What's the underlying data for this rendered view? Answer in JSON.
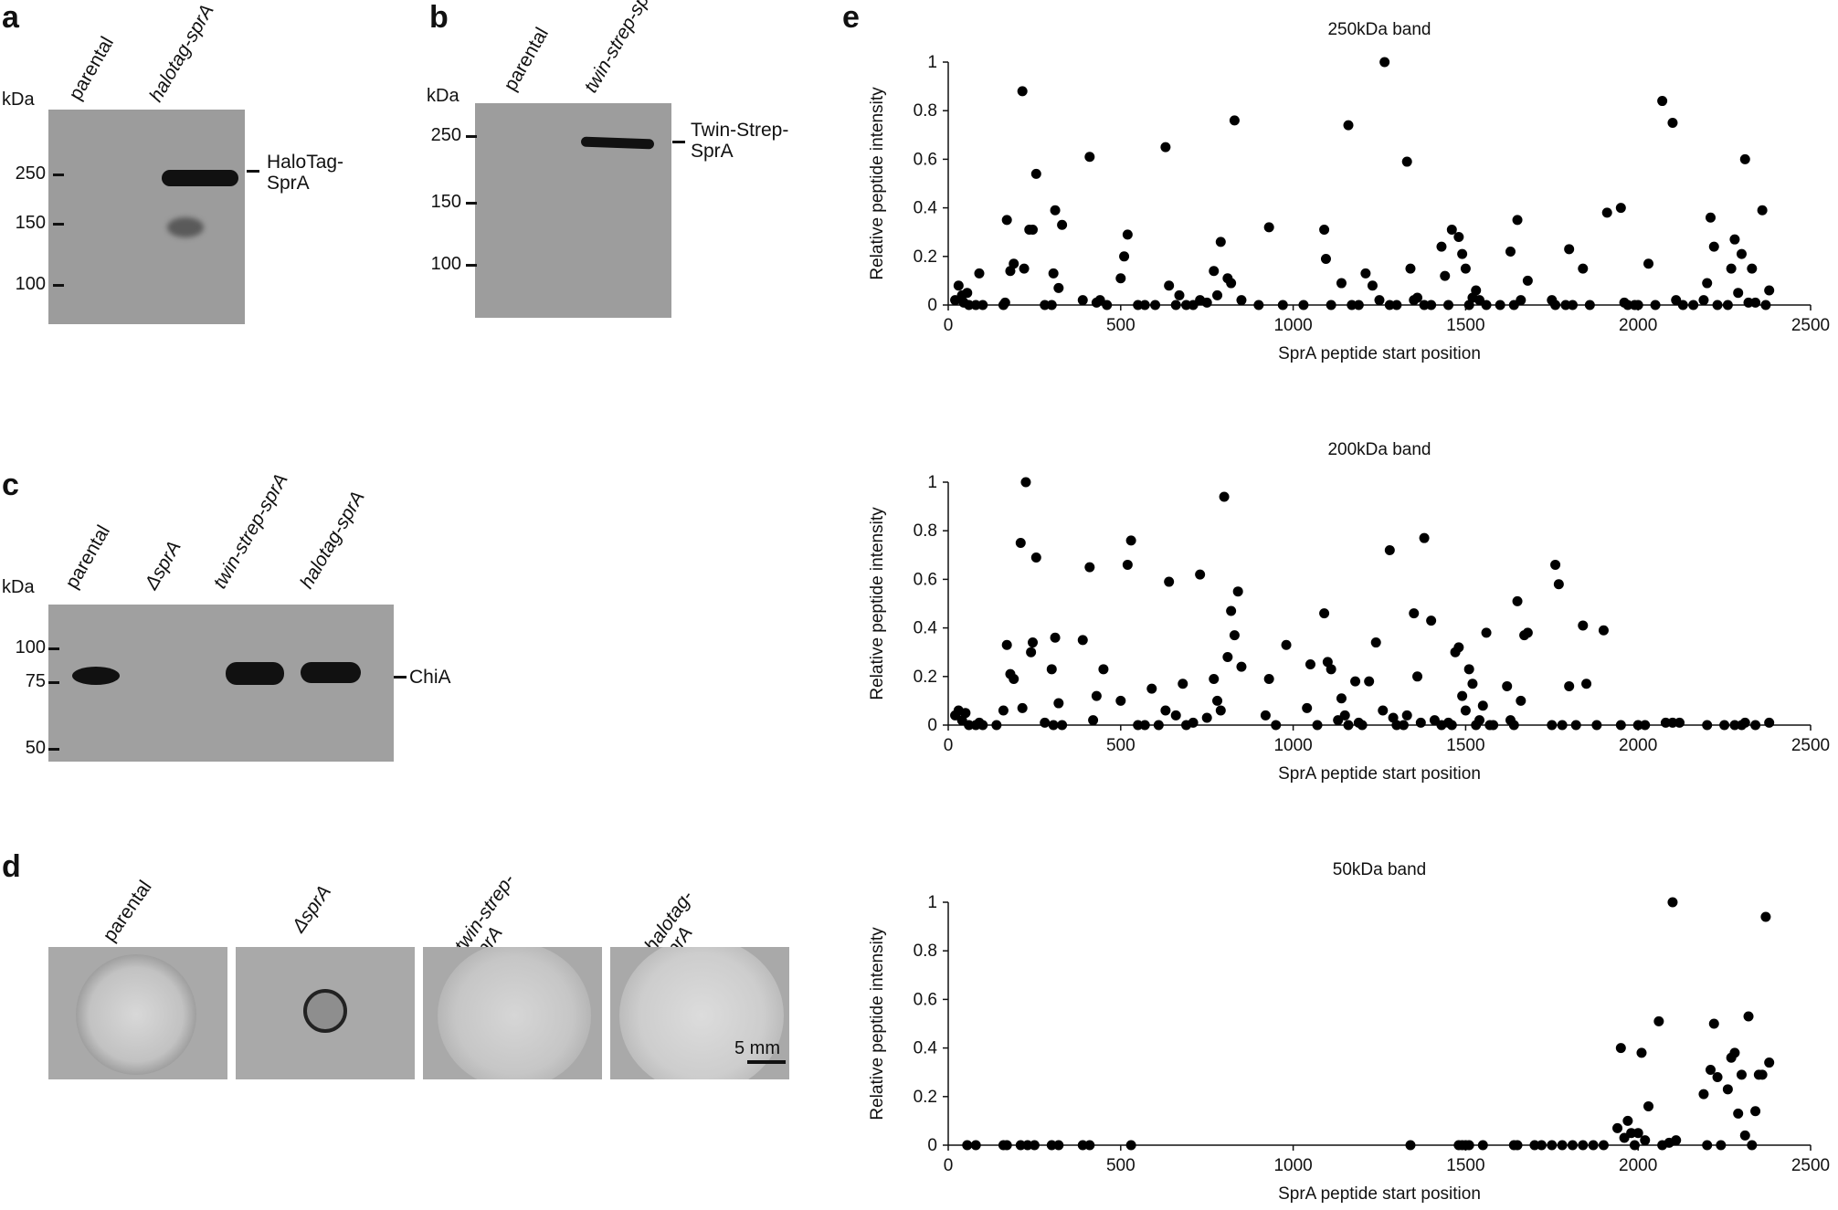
{
  "panels": {
    "a": {
      "letter": "a",
      "kda": "kDa",
      "lanes": [
        "parental",
        "halotag-sprA"
      ],
      "markers": [
        "250",
        "150",
        "100"
      ],
      "band_label": "HaloTag-\nSprA"
    },
    "b": {
      "letter": "b",
      "kda": "kDa",
      "lanes": [
        "parental",
        "twin-strep-sprA"
      ],
      "markers": [
        "250",
        "150",
        "100"
      ],
      "band_label": "Twin-Strep-\nSprA"
    },
    "c": {
      "letter": "c",
      "kda": "kDa",
      "lanes": [
        "parental",
        "ΔsprA",
        "twin-strep-sprA",
        "halotag-sprA"
      ],
      "markers": [
        "100",
        "75",
        "50"
      ],
      "band_label": "ChiA"
    },
    "d": {
      "letter": "d",
      "plates": [
        "parental",
        "ΔsprA",
        "twin-strep-\nsprA",
        "halotag-\nsprA"
      ],
      "scale_label": "5 mm"
    },
    "e": {
      "letter": "e"
    }
  },
  "chart_data": [
    {
      "type": "scatter",
      "title": "250kDa band",
      "xlabel": "SprA peptide start position",
      "ylabel": "Relative peptide intensity",
      "xlim": [
        0,
        2500
      ],
      "ylim": [
        0,
        1
      ],
      "xticks": [
        "0",
        "500",
        "1000",
        "1500",
        "2000",
        "2500"
      ],
      "yticks": [
        "0",
        "0.2",
        "0.4",
        "0.6",
        "0.8",
        "1"
      ],
      "points": [
        [
          20,
          0.02
        ],
        [
          30,
          0.08
        ],
        [
          40,
          0.04
        ],
        [
          45,
          0.01
        ],
        [
          55,
          0.05
        ],
        [
          60,
          0.0
        ],
        [
          80,
          0.0
        ],
        [
          90,
          0.13
        ],
        [
          100,
          0.0
        ],
        [
          160,
          0.0
        ],
        [
          165,
          0.01
        ],
        [
          170,
          0.35
        ],
        [
          180,
          0.14
        ],
        [
          190,
          0.17
        ],
        [
          215,
          0.88
        ],
        [
          220,
          0.15
        ],
        [
          235,
          0.31
        ],
        [
          245,
          0.31
        ],
        [
          255,
          0.54
        ],
        [
          280,
          0.0
        ],
        [
          300,
          0.0
        ],
        [
          305,
          0.13
        ],
        [
          310,
          0.39
        ],
        [
          320,
          0.07
        ],
        [
          330,
          0.33
        ],
        [
          390,
          0.02
        ],
        [
          410,
          0.61
        ],
        [
          430,
          0.01
        ],
        [
          440,
          0.02
        ],
        [
          460,
          0.0
        ],
        [
          500,
          0.11
        ],
        [
          510,
          0.2
        ],
        [
          520,
          0.29
        ],
        [
          550,
          0.0
        ],
        [
          570,
          0.0
        ],
        [
          600,
          0.0
        ],
        [
          630,
          0.65
        ],
        [
          640,
          0.08
        ],
        [
          660,
          0.0
        ],
        [
          670,
          0.04
        ],
        [
          690,
          0.0
        ],
        [
          710,
          0.0
        ],
        [
          730,
          0.02
        ],
        [
          750,
          0.01
        ],
        [
          770,
          0.14
        ],
        [
          780,
          0.04
        ],
        [
          790,
          0.26
        ],
        [
          810,
          0.11
        ],
        [
          820,
          0.09
        ],
        [
          830,
          0.76
        ],
        [
          850,
          0.02
        ],
        [
          900,
          0.0
        ],
        [
          930,
          0.32
        ],
        [
          970,
          0.0
        ],
        [
          1030,
          0.0
        ],
        [
          1090,
          0.31
        ],
        [
          1095,
          0.19
        ],
        [
          1110,
          0.0
        ],
        [
          1140,
          0.09
        ],
        [
          1160,
          0.74
        ],
        [
          1170,
          0.0
        ],
        [
          1190,
          0.0
        ],
        [
          1210,
          0.13
        ],
        [
          1230,
          0.08
        ],
        [
          1250,
          0.02
        ],
        [
          1265,
          1.0
        ],
        [
          1280,
          0.0
        ],
        [
          1300,
          0.0
        ],
        [
          1330,
          0.59
        ],
        [
          1340,
          0.15
        ],
        [
          1350,
          0.02
        ],
        [
          1360,
          0.03
        ],
        [
          1380,
          0.0
        ],
        [
          1400,
          0.0
        ],
        [
          1430,
          0.24
        ],
        [
          1440,
          0.12
        ],
        [
          1450,
          0.0
        ],
        [
          1460,
          0.31
        ],
        [
          1480,
          0.28
        ],
        [
          1490,
          0.21
        ],
        [
          1500,
          0.15
        ],
        [
          1510,
          0.0
        ],
        [
          1520,
          0.03
        ],
        [
          1530,
          0.06
        ],
        [
          1540,
          0.02
        ],
        [
          1560,
          0.0
        ],
        [
          1600,
          0.0
        ],
        [
          1630,
          0.22
        ],
        [
          1640,
          0.0
        ],
        [
          1650,
          0.35
        ],
        [
          1660,
          0.02
        ],
        [
          1680,
          0.1
        ],
        [
          1750,
          0.02
        ],
        [
          1760,
          0.0
        ],
        [
          1790,
          0.0
        ],
        [
          1800,
          0.23
        ],
        [
          1810,
          0.0
        ],
        [
          1840,
          0.15
        ],
        [
          1860,
          0.0
        ],
        [
          1910,
          0.38
        ],
        [
          1950,
          0.4
        ],
        [
          1960,
          0.01
        ],
        [
          1970,
          0.0
        ],
        [
          1990,
          0.0
        ],
        [
          2000,
          0.0
        ],
        [
          2030,
          0.17
        ],
        [
          2050,
          0.0
        ],
        [
          2070,
          0.84
        ],
        [
          2100,
          0.75
        ],
        [
          2110,
          0.02
        ],
        [
          2130,
          0.0
        ],
        [
          2160,
          0.0
        ],
        [
          2190,
          0.02
        ],
        [
          2200,
          0.09
        ],
        [
          2210,
          0.36
        ],
        [
          2220,
          0.24
        ],
        [
          2230,
          0.0
        ],
        [
          2260,
          0.0
        ],
        [
          2270,
          0.15
        ],
        [
          2280,
          0.27
        ],
        [
          2290,
          0.05
        ],
        [
          2300,
          0.21
        ],
        [
          2310,
          0.6
        ],
        [
          2320,
          0.01
        ],
        [
          2330,
          0.15
        ],
        [
          2340,
          0.01
        ],
        [
          2360,
          0.39
        ],
        [
          2370,
          0.0
        ],
        [
          2380,
          0.06
        ]
      ]
    },
    {
      "type": "scatter",
      "title": "200kDa band",
      "xlabel": "SprA peptide start position",
      "ylabel": "Relative peptide intensity",
      "xlim": [
        0,
        2500
      ],
      "ylim": [
        0,
        1
      ],
      "xticks": [
        "0",
        "500",
        "1000",
        "1500",
        "2000",
        "2500"
      ],
      "yticks": [
        "0",
        "0.2",
        "0.4",
        "0.6",
        "0.8",
        "1"
      ],
      "points": [
        [
          20,
          0.04
        ],
        [
          30,
          0.06
        ],
        [
          40,
          0.02
        ],
        [
          50,
          0.05
        ],
        [
          60,
          0.0
        ],
        [
          80,
          0.0
        ],
        [
          90,
          0.01
        ],
        [
          100,
          0.0
        ],
        [
          140,
          0.0
        ],
        [
          160,
          0.06
        ],
        [
          170,
          0.33
        ],
        [
          180,
          0.21
        ],
        [
          190,
          0.19
        ],
        [
          210,
          0.75
        ],
        [
          215,
          0.07
        ],
        [
          225,
          1.0
        ],
        [
          240,
          0.3
        ],
        [
          245,
          0.34
        ],
        [
          255,
          0.69
        ],
        [
          280,
          0.01
        ],
        [
          300,
          0.23
        ],
        [
          305,
          0.0
        ],
        [
          310,
          0.36
        ],
        [
          320,
          0.09
        ],
        [
          330,
          0.0
        ],
        [
          390,
          0.35
        ],
        [
          410,
          0.65
        ],
        [
          420,
          0.02
        ],
        [
          430,
          0.12
        ],
        [
          450,
          0.23
        ],
        [
          500,
          0.1
        ],
        [
          520,
          0.66
        ],
        [
          530,
          0.76
        ],
        [
          550,
          0.0
        ],
        [
          570,
          0.0
        ],
        [
          590,
          0.15
        ],
        [
          610,
          0.0
        ],
        [
          630,
          0.06
        ],
        [
          640,
          0.59
        ],
        [
          660,
          0.04
        ],
        [
          680,
          0.17
        ],
        [
          690,
          0.0
        ],
        [
          710,
          0.01
        ],
        [
          730,
          0.62
        ],
        [
          750,
          0.03
        ],
        [
          770,
          0.19
        ],
        [
          780,
          0.1
        ],
        [
          790,
          0.06
        ],
        [
          800,
          0.94
        ],
        [
          810,
          0.28
        ],
        [
          820,
          0.47
        ],
        [
          830,
          0.37
        ],
        [
          840,
          0.55
        ],
        [
          850,
          0.24
        ],
        [
          920,
          0.04
        ],
        [
          930,
          0.19
        ],
        [
          950,
          0.0
        ],
        [
          980,
          0.33
        ],
        [
          1040,
          0.07
        ],
        [
          1050,
          0.25
        ],
        [
          1070,
          0.0
        ],
        [
          1090,
          0.46
        ],
        [
          1100,
          0.26
        ],
        [
          1110,
          0.23
        ],
        [
          1130,
          0.02
        ],
        [
          1140,
          0.11
        ],
        [
          1150,
          0.04
        ],
        [
          1160,
          0.0
        ],
        [
          1180,
          0.18
        ],
        [
          1190,
          0.01
        ],
        [
          1200,
          0.0
        ],
        [
          1220,
          0.18
        ],
        [
          1240,
          0.34
        ],
        [
          1260,
          0.06
        ],
        [
          1280,
          0.72
        ],
        [
          1290,
          0.03
        ],
        [
          1300,
          0.0
        ],
        [
          1320,
          0.0
        ],
        [
          1330,
          0.04
        ],
        [
          1350,
          0.46
        ],
        [
          1360,
          0.2
        ],
        [
          1370,
          0.01
        ],
        [
          1380,
          0.77
        ],
        [
          1400,
          0.43
        ],
        [
          1410,
          0.02
        ],
        [
          1430,
          0.0
        ],
        [
          1450,
          0.01
        ],
        [
          1460,
          0.0
        ],
        [
          1470,
          0.3
        ],
        [
          1480,
          0.32
        ],
        [
          1490,
          0.12
        ],
        [
          1500,
          0.06
        ],
        [
          1510,
          0.23
        ],
        [
          1520,
          0.17
        ],
        [
          1530,
          0.0
        ],
        [
          1540,
          0.02
        ],
        [
          1550,
          0.08
        ],
        [
          1560,
          0.38
        ],
        [
          1570,
          0.0
        ],
        [
          1580,
          0.0
        ],
        [
          1620,
          0.16
        ],
        [
          1630,
          0.02
        ],
        [
          1640,
          0.0
        ],
        [
          1650,
          0.51
        ],
        [
          1660,
          0.1
        ],
        [
          1670,
          0.37
        ],
        [
          1680,
          0.38
        ],
        [
          1750,
          0.0
        ],
        [
          1760,
          0.66
        ],
        [
          1770,
          0.58
        ],
        [
          1780,
          0.0
        ],
        [
          1800,
          0.16
        ],
        [
          1820,
          0.0
        ],
        [
          1840,
          0.41
        ],
        [
          1850,
          0.17
        ],
        [
          1880,
          0.0
        ],
        [
          1900,
          0.39
        ],
        [
          1950,
          0.0
        ],
        [
          2000,
          0.0
        ],
        [
          2020,
          0.0
        ],
        [
          2080,
          0.01
        ],
        [
          2100,
          0.01
        ],
        [
          2120,
          0.01
        ],
        [
          2200,
          0.0
        ],
        [
          2250,
          0.0
        ],
        [
          2280,
          0.0
        ],
        [
          2300,
          0.0
        ],
        [
          2310,
          0.01
        ],
        [
          2340,
          0.0
        ],
        [
          2380,
          0.01
        ]
      ]
    },
    {
      "type": "scatter",
      "title": "50kDa band",
      "xlabel": "SprA peptide start position",
      "ylabel": "Relative peptide intensity",
      "xlim": [
        0,
        2500
      ],
      "ylim": [
        0,
        1
      ],
      "xticks": [
        "0",
        "500",
        "1000",
        "1500",
        "2000",
        "2500"
      ],
      "yticks": [
        "0",
        "0.2",
        "0.4",
        "0.6",
        "0.8",
        "1"
      ],
      "points": [
        [
          55,
          0.0
        ],
        [
          80,
          0.0
        ],
        [
          160,
          0.0
        ],
        [
          170,
          0.0
        ],
        [
          210,
          0.0
        ],
        [
          230,
          0.0
        ],
        [
          250,
          0.0
        ],
        [
          300,
          0.0
        ],
        [
          320,
          0.0
        ],
        [
          390,
          0.0
        ],
        [
          410,
          0.0
        ],
        [
          530,
          0.0
        ],
        [
          1340,
          0.0
        ],
        [
          1480,
          0.0
        ],
        [
          1490,
          0.0
        ],
        [
          1500,
          0.0
        ],
        [
          1510,
          0.0
        ],
        [
          1550,
          0.0
        ],
        [
          1640,
          0.0
        ],
        [
          1650,
          0.0
        ],
        [
          1700,
          0.0
        ],
        [
          1720,
          0.0
        ],
        [
          1750,
          0.0
        ],
        [
          1780,
          0.0
        ],
        [
          1810,
          0.0
        ],
        [
          1840,
          0.0
        ],
        [
          1870,
          0.0
        ],
        [
          1900,
          0.0
        ],
        [
          1940,
          0.07
        ],
        [
          1950,
          0.4
        ],
        [
          1960,
          0.03
        ],
        [
          1970,
          0.1
        ],
        [
          1980,
          0.05
        ],
        [
          1990,
          0.0
        ],
        [
          2000,
          0.05
        ],
        [
          2010,
          0.38
        ],
        [
          2020,
          0.02
        ],
        [
          2030,
          0.16
        ],
        [
          2060,
          0.51
        ],
        [
          2070,
          0.0
        ],
        [
          2090,
          0.01
        ],
        [
          2100,
          1.0
        ],
        [
          2110,
          0.02
        ],
        [
          2190,
          0.21
        ],
        [
          2200,
          0.0
        ],
        [
          2210,
          0.31
        ],
        [
          2220,
          0.5
        ],
        [
          2230,
          0.28
        ],
        [
          2240,
          0.0
        ],
        [
          2260,
          0.23
        ],
        [
          2270,
          0.36
        ],
        [
          2280,
          0.38
        ],
        [
          2290,
          0.13
        ],
        [
          2300,
          0.29
        ],
        [
          2310,
          0.04
        ],
        [
          2320,
          0.53
        ],
        [
          2330,
          0.0
        ],
        [
          2340,
          0.14
        ],
        [
          2350,
          0.29
        ],
        [
          2360,
          0.29
        ],
        [
          2370,
          0.94
        ],
        [
          2380,
          0.34
        ]
      ]
    }
  ]
}
